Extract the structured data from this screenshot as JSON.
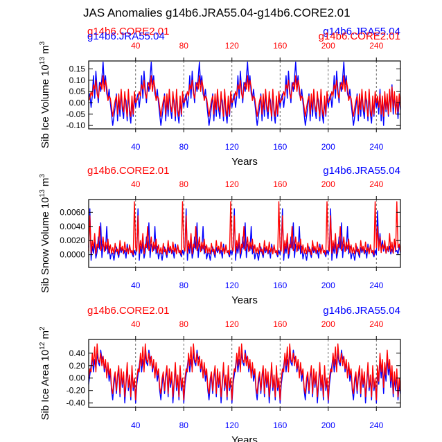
{
  "title": "JAS Anomalies g14b6.JRA55.04-g14b6.CORE2.01",
  "colors": {
    "jra": "#0000ff",
    "core": "#ff0000",
    "axis": "#000000",
    "grid": "#444444"
  },
  "chart_data": [
    {
      "type": "line",
      "ylabel": "Sib Ice Volume",
      "ylabel_units": "10",
      "ylabel_exp": "13",
      "ylabel_unit": "m",
      "ylabel_unit_exp": "3",
      "xlabel": "Years",
      "xlim": [
        1,
        260
      ],
      "ylim": [
        -0.115,
        0.185
      ],
      "yticks": [
        -0.1,
        -0.05,
        0.0,
        0.05,
        0.1,
        0.15
      ],
      "ytick_labels": [
        "-0.10",
        "-0.05",
        "0.00",
        "0.05",
        "0.10",
        "0.15"
      ],
      "top_ticks": [
        40,
        80,
        120,
        160,
        200,
        240
      ],
      "top_tick_labels": [
        "40",
        "80",
        "120",
        "160",
        "200",
        "240"
      ],
      "bottom_ticks": [
        40,
        80,
        120,
        160,
        200,
        240
      ],
      "bottom_tick_labels": [
        "40",
        "80",
        "120",
        "160",
        "200",
        "240"
      ],
      "cycle_starts": [
        1,
        41,
        81,
        121,
        161,
        201,
        241
      ],
      "run_labels_overlap": true,
      "series": [
        {
          "name": "g14b6.JRA55.04",
          "color": "#0000ff",
          "cycle": [
            0.02,
            0.04,
            -0.02,
            0.03,
            0.12,
            0.02,
            0.14,
            0.06,
            0.0,
            0.09,
            0.05,
            0.11,
            0.18,
            0.08,
            0.12,
            0.04,
            0.02,
            0.06,
            0.0,
            -0.05,
            -0.1,
            -0.06,
            -0.02,
            0.04,
            -0.08,
            0.02,
            -0.06,
            0.05,
            -0.03,
            -0.07,
            0.03,
            0.01,
            -0.08,
            0.05,
            -0.05,
            -0.09,
            0.01,
            -0.06,
            0.03,
            -0.02
          ],
          "tail": [
            0.01,
            -0.05,
            0.06,
            -0.08,
            0.02,
            -0.1,
            0.03,
            -0.04,
            0.02,
            -0.06,
            0.05,
            -0.02,
            0.08,
            -0.05,
            0.03,
            -0.03,
            0.01,
            -0.07,
            0.02,
            -0.03
          ]
        },
        {
          "name": "g14b6.CORE2.01",
          "color": "#ff0000",
          "cycle": [
            0.01,
            0.02,
            0.05,
            0.03,
            0.08,
            0.06,
            0.1,
            0.04,
            0.02,
            0.07,
            0.09,
            0.06,
            0.12,
            0.05,
            0.1,
            0.07,
            0.01,
            0.03,
            0.02,
            -0.02,
            -0.06,
            -0.02,
            0.01,
            0.03,
            -0.05,
            0.04,
            -0.03,
            0.06,
            -0.01,
            -0.04,
            0.05,
            -0.02,
            -0.06,
            0.06,
            -0.03,
            -0.06,
            0.03,
            -0.05,
            0.05,
            0.0
          ],
          "tail": [
            0.03,
            -0.02,
            0.04,
            -0.05,
            0.03,
            -0.06,
            0.05,
            -0.03,
            0.04,
            -0.05,
            0.06,
            -0.04,
            0.07,
            -0.02,
            0.05,
            -0.05,
            0.03,
            -0.04,
            0.04,
            -0.02
          ]
        }
      ]
    },
    {
      "type": "line",
      "ylabel": "Sib Snow Volume",
      "ylabel_units": "10",
      "ylabel_exp": "13",
      "ylabel_unit": "m",
      "ylabel_unit_exp": "3",
      "xlabel": "Years",
      "xlim": [
        1,
        260
      ],
      "ylim": [
        -0.0018,
        0.0078
      ],
      "yticks": [
        0.0,
        0.002,
        0.004,
        0.006
      ],
      "ytick_labels": [
        "0.0000",
        "0.0020",
        "0.0040",
        "0.0060"
      ],
      "top_ticks": [
        40,
        80,
        120,
        160,
        200,
        240
      ],
      "top_tick_labels": [
        "40",
        "80",
        "120",
        "160",
        "200",
        "240"
      ],
      "bottom_ticks": [
        40,
        80,
        120,
        160,
        200,
        240
      ],
      "bottom_tick_labels": [
        "40",
        "80",
        "120",
        "160",
        "200",
        "240"
      ],
      "cycle_starts": [
        1,
        41,
        81,
        121,
        161,
        201,
        241
      ],
      "run_labels_overlap": false,
      "series": [
        {
          "name": "g14b6.JRA55.04",
          "color": "#0000ff",
          "cycle": [
            0.001,
            0.0065,
            -0.0008,
            0.0012,
            0.0002,
            0.0018,
            -0.0005,
            0.0004,
            0.0025,
            0.0008,
            0.0045,
            -0.0004,
            0.0015,
            0.001,
            0.0006,
            0.004,
            0.0001,
            0.0012,
            -0.0006,
            0.0003,
            0.0002,
            -0.0008,
            0.0004,
            0.0011,
            0.0002,
            -0.0004,
            0.001,
            0.0003,
            0.0009,
            0.0001,
            0.0006,
            -0.0005,
            0.0015,
            0.0003,
            0.0012,
            0.0005,
            0.0002,
            -0.0003,
            0.0006,
            0.0
          ],
          "tail": [
            0.0062,
            0.001,
            0.003,
            0.0008,
            0.002,
            0.0005,
            0.0015,
            0.0002,
            0.001,
            0.0004,
            0.0012,
            0.0001,
            0.0008,
            0.0002,
            0.0018,
            0.0004,
            0.0006,
            0.0001,
            0.0012,
            0.0003
          ]
        },
        {
          "name": "g14b6.CORE2.01",
          "color": "#ff0000",
          "cycle": [
            0.0005,
            0.0055,
            0.0002,
            0.002,
            0.0008,
            0.003,
            0.0001,
            0.0015,
            0.001,
            0.004,
            0.0006,
            0.0012,
            0.0025,
            0.0004,
            0.0018,
            0.0008,
            0.0022,
            0.0003,
            0.0014,
            0.0002,
            0.001,
            0.0001,
            0.0016,
            0.0004,
            0.0008,
            0.0,
            0.002,
            0.0006,
            0.0012,
            0.0002,
            0.0018,
            0.0004,
            0.001,
            0.0001,
            0.0014,
            0.0003,
            0.0006,
            0.0,
            0.0075,
            0.001
          ],
          "tail": [
            0.004,
            0.0006,
            0.0025,
            0.0003,
            0.0015,
            0.0008,
            0.002,
            0.0002,
            0.0012,
            0.0005,
            0.003,
            0.0004,
            0.0018,
            0.0002,
            0.0022,
            0.0006,
            0.0075,
            0.001,
            0.0015,
            0.0004
          ]
        }
      ]
    },
    {
      "type": "line",
      "ylabel": "Sib Ice Area",
      "ylabel_units": "10",
      "ylabel_exp": "12",
      "ylabel_unit": "m",
      "ylabel_unit_exp": "2",
      "xlabel": "Years",
      "xlim": [
        1,
        260
      ],
      "ylim": [
        -0.47,
        0.62
      ],
      "yticks": [
        -0.4,
        -0.2,
        0.0,
        0.2,
        0.4
      ],
      "ytick_labels": [
        "-0.40",
        "-0.20",
        "0.00",
        "0.20",
        "0.40"
      ],
      "top_ticks": [
        40,
        80,
        120,
        160,
        200,
        240
      ],
      "top_tick_labels": [
        "40",
        "80",
        "120",
        "160",
        "200",
        "240"
      ],
      "bottom_ticks": [
        40,
        80,
        120,
        160,
        200,
        240
      ],
      "bottom_tick_labels": [
        "40",
        "80",
        "120",
        "160",
        "200",
        "240"
      ],
      "cycle_starts": [
        1,
        41,
        81,
        121,
        161,
        201,
        241
      ],
      "run_labels_overlap": false,
      "series": [
        {
          "name": "g14b6.JRA55.04",
          "color": "#0000ff",
          "cycle": [
            -0.1,
            0.05,
            0.2,
            0.35,
            0.1,
            0.3,
            0.15,
            0.4,
            0.25,
            0.2,
            0.45,
            0.3,
            0.35,
            0.1,
            0.25,
            0.05,
            0.2,
            -0.05,
            0.1,
            -0.2,
            -0.35,
            -0.1,
            0.05,
            -0.25,
            0.0,
            0.15,
            -0.3,
            0.1,
            -0.15,
            0.05,
            -0.4,
            -0.1,
            0.2,
            -0.2,
            0.0,
            -0.35,
            0.15,
            -0.2,
            -0.05,
            -0.4
          ],
          "tail": [
            0.1,
            -0.1,
            0.3,
            0.0,
            0.2,
            -0.25,
            0.15,
            -0.05,
            0.35,
            0.05,
            0.2,
            -0.15,
            0.1,
            -0.3,
            0.0,
            -0.2,
            0.05,
            -0.35,
            -0.1,
            -0.25
          ]
        },
        {
          "name": "g14b6.CORE2.01",
          "color": "#ff0000",
          "cycle": [
            0.0,
            0.15,
            0.1,
            0.4,
            0.2,
            0.5,
            0.1,
            0.55,
            0.3,
            0.25,
            0.4,
            0.2,
            0.35,
            0.15,
            0.3,
            0.0,
            0.25,
            0.05,
            0.15,
            -0.15,
            -0.25,
            0.0,
            0.1,
            -0.2,
            0.05,
            0.2,
            -0.25,
            0.15,
            -0.1,
            0.1,
            -0.3,
            -0.05,
            0.25,
            -0.15,
            0.05,
            -0.3,
            0.2,
            -0.15,
            0.0,
            -0.35
          ],
          "tail": [
            0.2,
            -0.05,
            0.4,
            0.1,
            0.3,
            -0.15,
            0.25,
            0.05,
            0.45,
            0.15,
            0.3,
            -0.05,
            0.2,
            -0.25,
            0.1,
            -0.15,
            0.15,
            -0.3,
            0.0,
            -0.2
          ]
        }
      ]
    }
  ]
}
